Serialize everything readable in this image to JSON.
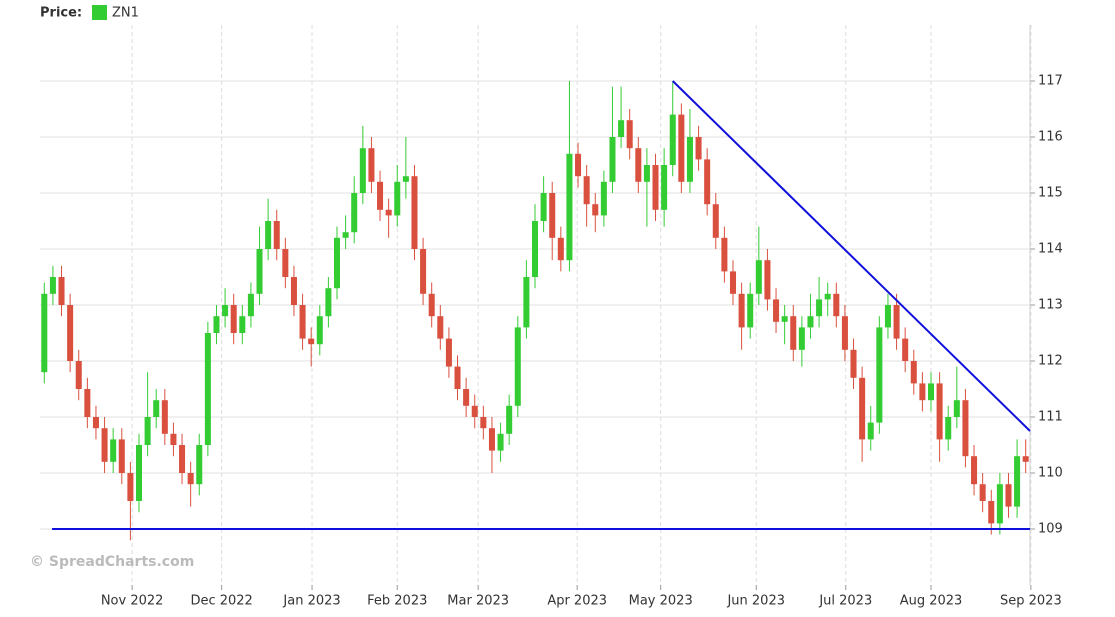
{
  "chart_data": {
    "type": "candlestick",
    "legend_label": "Price:",
    "series_name": "ZN1",
    "legend_color": "#33cc33",
    "watermark": "© SpreadCharts.com",
    "up_color": "#33cc33",
    "down_color": "#d9503f",
    "open": [
      111.8,
      113.2,
      113.5,
      113.0,
      112.0,
      111.5,
      111.0,
      110.8,
      110.2,
      110.6,
      110.0,
      109.5,
      110.5,
      111.0,
      111.3,
      110.7,
      110.5,
      110.0,
      109.8,
      110.5,
      112.5,
      112.8,
      113.0,
      112.5,
      112.8,
      113.2,
      114.0,
      114.5,
      114.0,
      113.5,
      113.0,
      112.4,
      112.3,
      112.8,
      113.3,
      114.2,
      114.3,
      115.0,
      115.8,
      115.2,
      114.7,
      114.6,
      115.2,
      115.3,
      114.0,
      113.2,
      112.8,
      112.4,
      111.9,
      111.5,
      111.2,
      111.0,
      110.8,
      110.4,
      110.7,
      111.2,
      112.6,
      113.5,
      114.5,
      115.0,
      114.2,
      113.8,
      115.7,
      115.3,
      114.8,
      114.6,
      115.2,
      116.0,
      116.3,
      115.8,
      115.2,
      115.5,
      114.7,
      115.5,
      116.4,
      115.2,
      116.0,
      115.6,
      114.8,
      114.2,
      113.6,
      113.2,
      112.6,
      113.2,
      113.8,
      113.1,
      112.7,
      112.8,
      112.2,
      112.6,
      112.8,
      113.1,
      113.2,
      112.8,
      112.2,
      111.7,
      110.6,
      110.9,
      112.6,
      113.0,
      112.4,
      112.0,
      111.6,
      111.3,
      111.6,
      110.6,
      111.0,
      111.3,
      110.3,
      109.8,
      109.5,
      109.1,
      109.8,
      109.4,
      110.3
    ],
    "high": [
      113.4,
      113.7,
      113.7,
      113.2,
      112.2,
      111.7,
      111.2,
      111.0,
      110.8,
      110.8,
      110.2,
      110.7,
      111.8,
      111.5,
      111.5,
      110.9,
      110.7,
      110.2,
      110.7,
      112.7,
      113.0,
      113.3,
      113.2,
      113.0,
      113.4,
      114.4,
      114.9,
      114.7,
      114.2,
      113.7,
      113.2,
      112.6,
      113.0,
      113.5,
      114.4,
      114.6,
      115.3,
      116.2,
      116.0,
      115.4,
      114.9,
      115.5,
      116.0,
      115.5,
      114.2,
      113.4,
      113.0,
      112.6,
      112.1,
      111.7,
      111.4,
      111.2,
      111.0,
      110.9,
      111.4,
      112.8,
      113.8,
      114.8,
      115.3,
      115.2,
      114.4,
      117.0,
      115.9,
      115.5,
      115.0,
      115.4,
      116.9,
      116.9,
      116.5,
      116.0,
      115.8,
      115.7,
      115.8,
      117.0,
      116.6,
      116.5,
      116.2,
      115.8,
      115.0,
      114.4,
      113.8,
      113.4,
      113.4,
      114.4,
      114.0,
      113.3,
      113.0,
      113.0,
      112.8,
      113.2,
      113.5,
      113.4,
      113.4,
      113.0,
      112.4,
      111.9,
      111.2,
      112.8,
      113.2,
      113.2,
      112.6,
      112.2,
      111.8,
      111.8,
      111.8,
      111.2,
      111.9,
      111.5,
      110.5,
      110.0,
      109.7,
      110.0,
      110.0,
      110.6,
      110.6
    ],
    "low": [
      111.6,
      113.0,
      112.8,
      111.8,
      111.3,
      110.8,
      110.6,
      110.0,
      110.0,
      109.8,
      108.8,
      109.3,
      110.3,
      110.8,
      110.5,
      110.3,
      109.8,
      109.4,
      109.6,
      110.3,
      112.3,
      112.6,
      112.3,
      112.3,
      112.6,
      113.0,
      113.8,
      113.8,
      113.3,
      112.8,
      112.2,
      111.9,
      112.1,
      112.6,
      113.1,
      114.0,
      114.1,
      114.8,
      115.0,
      114.5,
      114.2,
      114.4,
      114.9,
      113.8,
      113.0,
      112.6,
      112.2,
      111.7,
      111.3,
      111.0,
      110.8,
      110.6,
      110.0,
      110.2,
      110.5,
      111.0,
      112.4,
      113.3,
      114.3,
      113.8,
      113.6,
      113.6,
      115.1,
      114.4,
      114.3,
      114.4,
      115.0,
      115.8,
      115.6,
      115.0,
      114.4,
      114.5,
      114.4,
      115.3,
      115.0,
      115.0,
      115.4,
      114.6,
      114.0,
      113.4,
      113.0,
      112.2,
      112.4,
      113.0,
      112.9,
      112.5,
      112.3,
      112.0,
      111.9,
      112.4,
      112.6,
      112.8,
      112.6,
      112.0,
      111.5,
      110.2,
      110.4,
      110.7,
      112.4,
      112.2,
      111.8,
      111.4,
      111.1,
      111.1,
      110.2,
      110.4,
      110.8,
      110.1,
      109.6,
      109.3,
      108.9,
      108.9,
      109.2,
      109.2,
      110.0
    ],
    "close": [
      113.2,
      113.5,
      113.0,
      112.0,
      111.5,
      111.0,
      110.8,
      110.2,
      110.6,
      110.0,
      109.5,
      110.5,
      111.0,
      111.3,
      110.7,
      110.5,
      110.0,
      109.8,
      110.5,
      112.5,
      112.8,
      113.0,
      112.5,
      112.8,
      113.2,
      114.0,
      114.5,
      114.0,
      113.5,
      113.0,
      112.4,
      112.3,
      112.8,
      113.3,
      114.2,
      114.3,
      115.0,
      115.8,
      115.2,
      114.7,
      114.6,
      115.2,
      115.3,
      114.0,
      113.2,
      112.8,
      112.4,
      111.9,
      111.5,
      111.2,
      111.0,
      110.8,
      110.4,
      110.7,
      111.2,
      112.6,
      113.5,
      114.5,
      115.0,
      114.2,
      113.8,
      115.7,
      115.3,
      114.8,
      114.6,
      115.2,
      116.0,
      116.3,
      115.8,
      115.2,
      115.5,
      114.7,
      115.5,
      116.4,
      115.2,
      116.0,
      115.6,
      114.8,
      114.2,
      113.6,
      113.2,
      112.6,
      113.2,
      113.8,
      113.1,
      112.7,
      112.8,
      112.2,
      112.6,
      112.8,
      113.1,
      113.2,
      112.8,
      112.2,
      111.7,
      110.6,
      110.9,
      112.6,
      113.0,
      112.4,
      112.0,
      111.6,
      111.3,
      111.6,
      110.6,
      111.0,
      111.3,
      110.3,
      109.8,
      109.5,
      109.1,
      109.8,
      109.4,
      110.3,
      110.2
    ],
    "xlim": [
      0,
      115
    ],
    "xticks": [
      {
        "value": 10.7,
        "label": "Nov 2022"
      },
      {
        "value": 21.1,
        "label": "Dec 2022"
      },
      {
        "value": 31.6,
        "label": "Jan 2023"
      },
      {
        "value": 41.5,
        "label": "Feb 2023"
      },
      {
        "value": 50.9,
        "label": "Mar 2023"
      },
      {
        "value": 62.4,
        "label": "Apr 2023"
      },
      {
        "value": 72.1,
        "label": "May 2023"
      },
      {
        "value": 83.2,
        "label": "Jun 2023"
      },
      {
        "value": 93.6,
        "label": "Jul 2023"
      },
      {
        "value": 103.5,
        "label": "Aug 2023"
      },
      {
        "value": 115.1,
        "label": "Sep 2023"
      }
    ],
    "ylim": [
      108,
      118
    ],
    "yticks": [
      109,
      110,
      111,
      112,
      113,
      114,
      115,
      116,
      117
    ],
    "grid": true,
    "lines": [
      {
        "color": "#1010dd",
        "x": [
          73.5,
          115
        ],
        "y": [
          117,
          110.75
        ]
      },
      {
        "color": "#1010dd",
        "x": [
          1.4,
          115
        ],
        "y": [
          109,
          109
        ]
      }
    ]
  }
}
